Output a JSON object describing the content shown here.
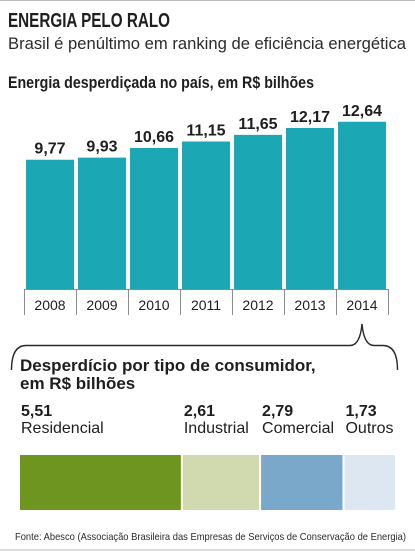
{
  "header": {
    "title": "ENERGIA PELO RALO",
    "subtitle": "Brasil é penúltimo em ranking de eficiência energética"
  },
  "chart_data": [
    {
      "type": "bar",
      "title": "Energia desperdiçada no país, em R$ bilhões",
      "categories": [
        "2008",
        "2009",
        "2010",
        "2011",
        "2012",
        "2013",
        "2014"
      ],
      "values": [
        9.77,
        9.93,
        10.66,
        11.15,
        11.65,
        12.17,
        12.64
      ],
      "value_labels": [
        "9,77",
        "9,93",
        "10,66",
        "11,15",
        "11,65",
        "12,17",
        "12,64"
      ],
      "xlabel": "",
      "ylabel": "",
      "ylim": [
        0,
        13
      ],
      "grid": false,
      "y_axis_shown": false,
      "legend": "none",
      "color": "#1ba8b4"
    },
    {
      "type": "bar",
      "orientation": "horizontal",
      "stacked": true,
      "title_lines": [
        "Desperdício por tipo de consumidor,",
        "em R$ bilhões"
      ],
      "categories": [
        "Residencial",
        "Industrial",
        "Comercial",
        "Outros"
      ],
      "values": [
        5.51,
        2.61,
        2.79,
        1.73
      ],
      "value_labels": [
        "5,51",
        "2,61",
        "2,79",
        "1,73"
      ],
      "grid": false,
      "legend": "none",
      "colors": [
        "#6e951f",
        "#d1d9ae",
        "#79a8cb",
        "#dce7f1"
      ]
    }
  ],
  "footer": {
    "source": "Fonte: Abesco (Associação Brasileira das Empresas de Serviços de Conservação de Energia)"
  }
}
